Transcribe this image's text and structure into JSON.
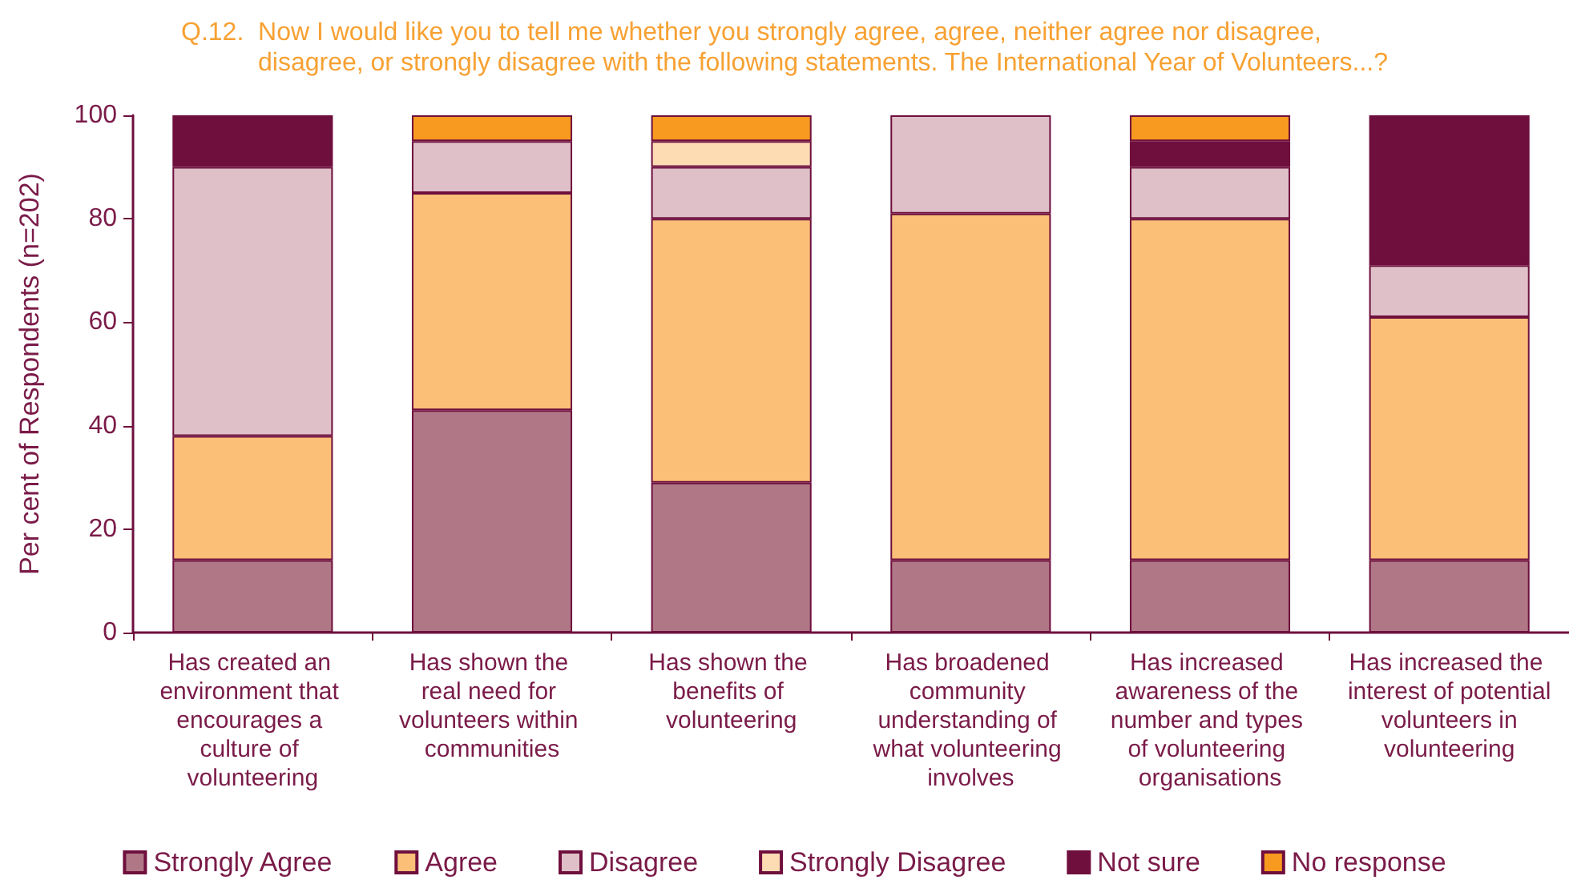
{
  "chart_data": {
    "type": "bar",
    "title": "Q.12.  Now I would like you to tell me whether you strongly agree, agree, neither agree nor disagree,\ndisagree, or strongly disagree with the following statements. The International Year of Volunteers...?",
    "ylabel": "Per cent of Respondents (n=202)",
    "categories": [
      "Has created an environment that encourages a culture of volunteering",
      "Has shown the real need for volunteers within communities",
      "Has shown the benefits of volunteering",
      "Has broadened community understanding of what volunteering involves",
      "Has increased awareness of the number and types of volunteering organisations",
      "Has increased the interest of potential volunteers in volunteering"
    ],
    "series": [
      {
        "name": "Strongly Agree",
        "color": "#b07787",
        "values": [
          14,
          43,
          29,
          14,
          14,
          14
        ]
      },
      {
        "name": "Agree",
        "color": "#fbbf78",
        "values": [
          24,
          42,
          51,
          67,
          66,
          47
        ]
      },
      {
        "name": "Disagree",
        "color": "#dfc0c8",
        "values": [
          52,
          10,
          10,
          19,
          10,
          10
        ]
      },
      {
        "name": "Strongly Disagree",
        "color": "#fddcb4",
        "values": [
          null,
          null,
          5,
          null,
          null,
          null
        ]
      },
      {
        "name": "Not sure",
        "color": "#6f0f3d",
        "values": [
          10,
          null,
          null,
          null,
          5,
          29
        ]
      },
      {
        "name": "No response",
        "color": "#f89a1f",
        "values": [
          null,
          5,
          5,
          null,
          5,
          null
        ]
      }
    ],
    "stacked": true,
    "ylim": [
      0,
      100
    ],
    "yticks": [
      0,
      20,
      40,
      60,
      80,
      100
    ],
    "grid": false,
    "legend": "bottom"
  }
}
